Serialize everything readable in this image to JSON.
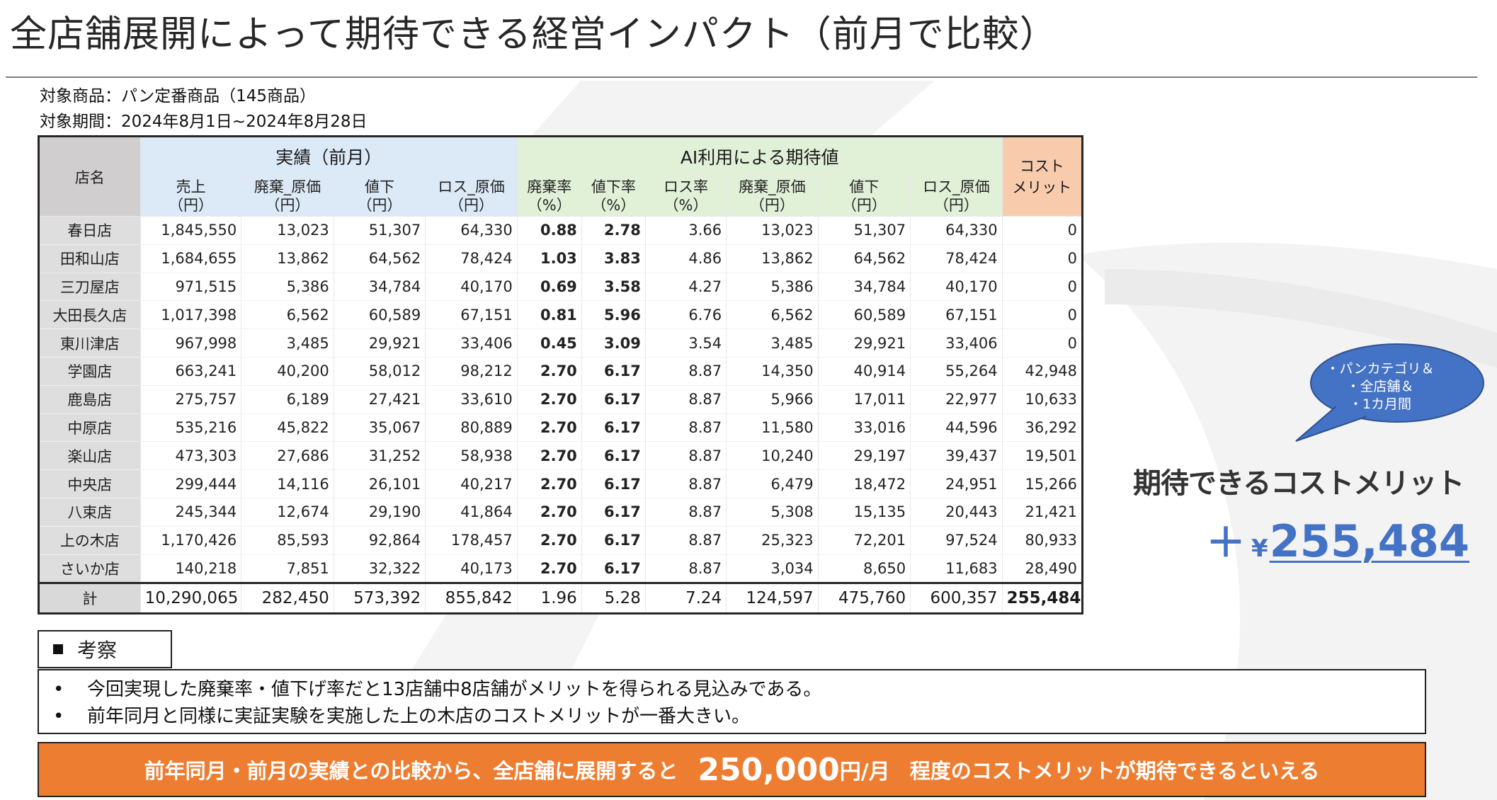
{
  "title": "全店舗展開によって期待できる経営インパクト（前月で比較）",
  "meta": {
    "product": "対象商品：パン定番商品（145商品）",
    "period": "対象期間：2024年8月1日~2024年8月28日"
  },
  "table": {
    "store_header": "店名",
    "group_actual": "実績（前月）",
    "group_ai": "AI利用による期待値",
    "cost_header_1": "コスト",
    "cost_header_2": "メリット",
    "columns": [
      {
        "top": "売上",
        "bottom": "（円）"
      },
      {
        "top": "廃棄_原価",
        "bottom": "（円）"
      },
      {
        "top": "値下",
        "bottom": "（円）"
      },
      {
        "top": "ロス_原価",
        "bottom": "（円）"
      },
      {
        "top": "廃棄率",
        "bottom": "（%）"
      },
      {
        "top": "値下率",
        "bottom": "（%）"
      },
      {
        "top": "ロス率",
        "bottom": "（%）"
      },
      {
        "top": "廃棄_原価",
        "bottom": "（円）"
      },
      {
        "top": "値下",
        "bottom": "（円）"
      },
      {
        "top": "ロス_原価",
        "bottom": "（円）"
      }
    ],
    "rows": [
      {
        "name": "春日店",
        "cells": [
          "1,845,550",
          "13,023",
          "51,307",
          "64,330",
          "0.88",
          "2.78",
          "3.66",
          "13,023",
          "51,307",
          "64,330"
        ],
        "cost": "0"
      },
      {
        "name": "田和山店",
        "cells": [
          "1,684,655",
          "13,862",
          "64,562",
          "78,424",
          "1.03",
          "3.83",
          "4.86",
          "13,862",
          "64,562",
          "78,424"
        ],
        "cost": "0"
      },
      {
        "name": "三刀屋店",
        "cells": [
          "971,515",
          "5,386",
          "34,784",
          "40,170",
          "0.69",
          "3.58",
          "4.27",
          "5,386",
          "34,784",
          "40,170"
        ],
        "cost": "0"
      },
      {
        "name": "大田長久店",
        "cells": [
          "1,017,398",
          "6,562",
          "60,589",
          "67,151",
          "0.81",
          "5.96",
          "6.76",
          "6,562",
          "60,589",
          "67,151"
        ],
        "cost": "0"
      },
      {
        "name": "東川津店",
        "cells": [
          "967,998",
          "3,485",
          "29,921",
          "33,406",
          "0.45",
          "3.09",
          "3.54",
          "3,485",
          "29,921",
          "33,406"
        ],
        "cost": "0"
      },
      {
        "name": "学園店",
        "cells": [
          "663,241",
          "40,200",
          "58,012",
          "98,212",
          "2.70",
          "6.17",
          "8.87",
          "14,350",
          "40,914",
          "55,264"
        ],
        "cost": "42,948"
      },
      {
        "name": "鹿島店",
        "cells": [
          "275,757",
          "6,189",
          "27,421",
          "33,610",
          "2.70",
          "6.17",
          "8.87",
          "5,966",
          "17,011",
          "22,977"
        ],
        "cost": "10,633"
      },
      {
        "name": "中原店",
        "cells": [
          "535,216",
          "45,822",
          "35,067",
          "80,889",
          "2.70",
          "6.17",
          "8.87",
          "11,580",
          "33,016",
          "44,596"
        ],
        "cost": "36,292"
      },
      {
        "name": "楽山店",
        "cells": [
          "473,303",
          "27,686",
          "31,252",
          "58,938",
          "2.70",
          "6.17",
          "8.87",
          "10,240",
          "29,197",
          "39,437"
        ],
        "cost": "19,501"
      },
      {
        "name": "中央店",
        "cells": [
          "299,444",
          "14,116",
          "26,101",
          "40,217",
          "2.70",
          "6.17",
          "8.87",
          "6,479",
          "18,472",
          "24,951"
        ],
        "cost": "15,266"
      },
      {
        "name": "八束店",
        "cells": [
          "245,344",
          "12,674",
          "29,190",
          "41,864",
          "2.70",
          "6.17",
          "8.87",
          "5,308",
          "15,135",
          "20,443"
        ],
        "cost": "21,421"
      },
      {
        "name": "上の木店",
        "cells": [
          "1,170,426",
          "85,593",
          "92,864",
          "178,457",
          "2.70",
          "6.17",
          "8.87",
          "25,323",
          "72,201",
          "97,524"
        ],
        "cost": "80,933"
      },
      {
        "name": "さいか店",
        "cells": [
          "140,218",
          "7,851",
          "32,322",
          "40,173",
          "2.70",
          "6.17",
          "8.87",
          "3,034",
          "8,650",
          "11,683"
        ],
        "cost": "28,490"
      }
    ],
    "total": {
      "name": "計",
      "cells": [
        "10,290,065",
        "282,450",
        "573,392",
        "855,842",
        "1.96",
        "5.28",
        "7.24",
        "124,597",
        "475,760",
        "600,357"
      ],
      "cost": "255,484"
    }
  },
  "bubble": {
    "line1": "・パンカテゴリ＆",
    "line2": "・全店舗＆",
    "line3": "・1カ月間"
  },
  "benefit": {
    "label": "期待できるコストメリット",
    "plus": "＋",
    "yen": "¥",
    "value": "255,484"
  },
  "kousatsu": {
    "title": "考察",
    "items": [
      "今回実現した廃棄率・値下げ率だと13店舗中8店舗がメリットを得られる見込みである。",
      "前年同月と同様に実証実験を実施した上の木店のコストメリットが一番大きい。"
    ]
  },
  "conclusion": {
    "part1": "前年同月・前月の実績との比較から、全店舗に展開すると",
    "amount": "250,000",
    "unit": "円/月",
    "part2": "程度のコストメリットが期待できるといえる"
  },
  "colors": {
    "accent_blue": "#4472c4",
    "orange": "#ed7d31",
    "header_blue": "#dce9f7",
    "header_green": "#e1f1d8",
    "header_peach": "#f8cbad",
    "store_gray": "#d0cece"
  }
}
